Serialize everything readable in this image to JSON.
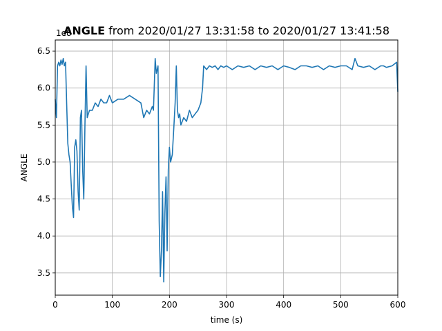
{
  "chart_data": {
    "type": "line",
    "title_bold": "ANGLE",
    "title_rest": " from 2020/01/27 13:31:58 to 2020/01/27 13:41:58",
    "xlabel": "time (s)",
    "ylabel": "ANGLE",
    "offset_label": "1e8",
    "xlim": [
      0,
      600
    ],
    "ylim": [
      3.2,
      6.65
    ],
    "x_ticks": [
      0,
      100,
      200,
      300,
      400,
      500,
      600
    ],
    "x_tick_labels": [
      "0",
      "100",
      "200",
      "300",
      "400",
      "500",
      "600"
    ],
    "y_ticks": [
      3.5,
      4.0,
      4.5,
      5.0,
      5.5,
      6.0,
      6.5
    ],
    "y_tick_labels": [
      "3.5",
      "4.0",
      "4.5",
      "5.0",
      "5.5",
      "6.0",
      "6.5"
    ],
    "grid": true,
    "line_color": "#1f77b4",
    "series": [
      {
        "x": [
          0,
          2,
          4,
          6,
          8,
          10,
          12,
          14,
          16,
          18,
          20,
          22,
          24,
          26,
          28,
          30,
          32,
          34,
          36,
          38,
          40,
          42,
          44,
          46,
          48,
          50,
          52,
          54,
          56,
          58,
          60,
          65,
          70,
          75,
          80,
          85,
          90,
          95,
          100,
          110,
          120,
          130,
          140,
          150,
          155,
          160,
          165,
          170,
          172,
          175,
          177,
          180,
          182,
          184,
          186,
          188,
          190,
          192,
          194,
          196,
          198,
          200,
          202,
          205,
          208,
          210,
          212,
          214,
          216,
          218,
          220,
          225,
          230,
          235,
          240,
          245,
          250,
          255,
          258,
          260,
          265,
          270,
          275,
          280,
          285,
          290,
          295,
          300,
          310,
          320,
          330,
          340,
          350,
          360,
          370,
          380,
          390,
          400,
          410,
          420,
          430,
          440,
          450,
          460,
          470,
          480,
          490,
          500,
          510,
          520,
          525,
          530,
          540,
          550,
          560,
          570,
          575,
          580,
          590,
          598,
          600
        ],
        "y": [
          5.85,
          5.6,
          6.3,
          6.35,
          6.3,
          6.38,
          6.32,
          6.4,
          6.3,
          6.35,
          5.8,
          5.25,
          5.1,
          5.0,
          4.7,
          4.4,
          4.25,
          5.2,
          5.3,
          5.15,
          4.6,
          4.35,
          5.6,
          5.7,
          4.9,
          4.5,
          5.5,
          6.3,
          5.6,
          5.65,
          5.7,
          5.7,
          5.8,
          5.75,
          5.85,
          5.8,
          5.8,
          5.9,
          5.8,
          5.85,
          5.85,
          5.9,
          5.85,
          5.8,
          5.6,
          5.7,
          5.65,
          5.75,
          5.7,
          6.4,
          6.2,
          6.3,
          4.2,
          3.45,
          3.8,
          4.6,
          3.38,
          4.3,
          4.8,
          3.8,
          4.9,
          5.2,
          5.0,
          5.1,
          5.5,
          5.8,
          6.3,
          5.7,
          5.6,
          5.65,
          5.5,
          5.6,
          5.55,
          5.7,
          5.6,
          5.65,
          5.7,
          5.8,
          6.0,
          6.3,
          6.25,
          6.3,
          6.28,
          6.3,
          6.25,
          6.3,
          6.28,
          6.3,
          6.25,
          6.3,
          6.28,
          6.3,
          6.25,
          6.3,
          6.28,
          6.3,
          6.25,
          6.3,
          6.28,
          6.25,
          6.3,
          6.3,
          6.28,
          6.3,
          6.25,
          6.3,
          6.28,
          6.3,
          6.3,
          6.25,
          6.4,
          6.3,
          6.28,
          6.3,
          6.25,
          6.3,
          6.3,
          6.28,
          6.3,
          6.35,
          5.95
        ]
      }
    ]
  }
}
